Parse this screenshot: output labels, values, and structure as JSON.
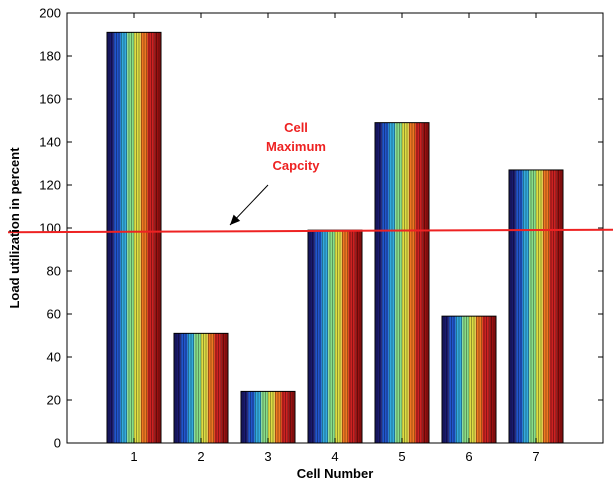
{
  "chart_data": {
    "type": "bar",
    "categories": [
      "1",
      "2",
      "3",
      "4",
      "5",
      "6",
      "7"
    ],
    "values": [
      191,
      51,
      24,
      99,
      149,
      59,
      127
    ],
    "title": "",
    "xlabel": "Cell Number",
    "ylabel": "Load utilization in percent",
    "ylim": [
      0,
      200
    ],
    "yticks": [
      0,
      20,
      40,
      60,
      80,
      100,
      120,
      140,
      160,
      180,
      200
    ],
    "grid": false,
    "stripe_colors": [
      "#1a1a6e",
      "#2255cc",
      "#33aadd",
      "#88dd88",
      "#dddd44",
      "#ee7722",
      "#cc2222",
      "#991111"
    ],
    "reference_line": {
      "value": 98.5,
      "color": "#ee2222"
    },
    "annotation": {
      "lines": [
        "Cell",
        "Maximum",
        "Capcity"
      ],
      "color": "#ee2222",
      "arrow_target_value": 100
    }
  }
}
